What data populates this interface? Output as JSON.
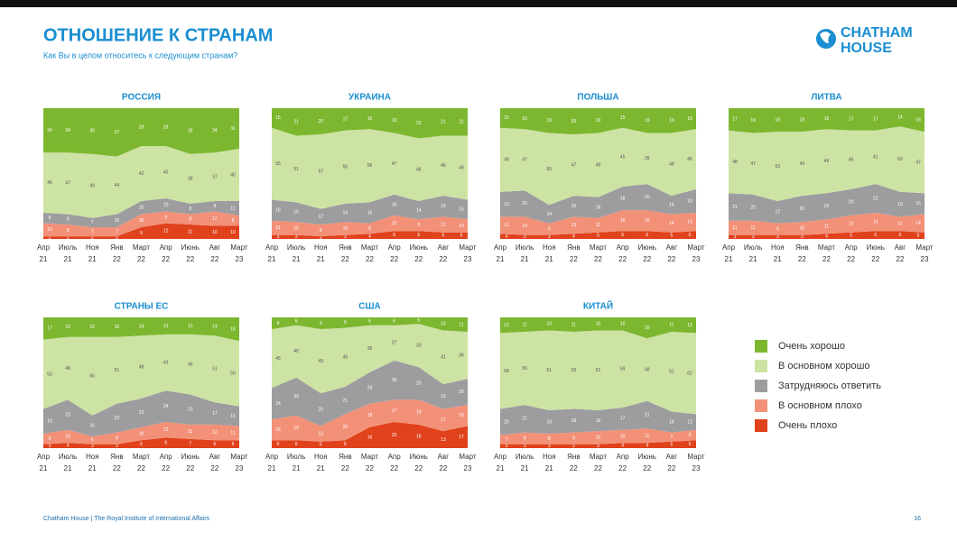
{
  "header": {
    "title": "ОТНОШЕНИЕ К СТРАНАМ",
    "subtitle": "Как Вы в целом относитесь к следующим странам?",
    "logo": [
      "CHATHAM",
      "HOUSE"
    ]
  },
  "footer": {
    "source": "Chatham House  |  The Royal Institute of International Affairs",
    "page": "16"
  },
  "chart_data": [
    {
      "type": "area",
      "title": "РОССИЯ",
      "ylim": [
        0,
        100
      ],
      "categories": [
        "Апр 21",
        "Июль 21",
        "Ноя 21",
        "Янв 22",
        "Март 22",
        "Апр 22",
        "Июнь 22",
        "Авг 22",
        "Март 23"
      ],
      "series": [
        {
          "name": "Очень плохо",
          "color": "#e0421c",
          "values": [
            2,
            2,
            2,
            2,
            9,
            12,
            11,
            10,
            10
          ]
        },
        {
          "name": "В основном плохо",
          "color": "#f29178",
          "values": [
            10,
            9,
            7,
            7,
            10,
            9,
            8,
            11,
            8
          ]
        },
        {
          "name": "Затрудняюсь ответить",
          "color": "#9d9d9f",
          "values": [
            8,
            8,
            7,
            10,
            10,
            10,
            8,
            8,
            11
          ]
        },
        {
          "name": "В основном хорошо",
          "color": "#cde3a4",
          "values": [
            46,
            47,
            49,
            44,
            42,
            40,
            38,
            37,
            40
          ]
        },
        {
          "name": "Очень хорошо",
          "color": "#7db72f",
          "values": [
            34,
            34,
            35,
            37,
            29,
            29,
            35,
            34,
            31
          ]
        }
      ]
    },
    {
      "type": "area",
      "title": "УКРАИНА",
      "ylim": [
        0,
        100
      ],
      "categories": [
        "Апр 21",
        "Июль 21",
        "Ноя 21",
        "Янв 22",
        "Март 22",
        "Апр 22",
        "Июнь 22",
        "Авг 22",
        "Март 23"
      ],
      "series": [
        {
          "name": "Очень плохо",
          "color": "#e0421c",
          "values": [
            3,
            3,
            2,
            3,
            4,
            6,
            6,
            5,
            5
          ]
        },
        {
          "name": "В основном плохо",
          "color": "#f29178",
          "values": [
            11,
            10,
            9,
            10,
            8,
            12,
            9,
            12,
            10
          ]
        },
        {
          "name": "Затрудняюсь ответить",
          "color": "#9d9d9f",
          "values": [
            16,
            15,
            12,
            14,
            16,
            16,
            14,
            16,
            15
          ]
        },
        {
          "name": "В основном хорошо",
          "color": "#cde3a4",
          "values": [
            55,
            51,
            57,
            56,
            56,
            47,
            48,
            46,
            49
          ]
        },
        {
          "name": "Очень хорошо",
          "color": "#7db72f",
          "values": [
            15,
            21,
            20,
            17,
            16,
            19,
            23,
            21,
            21
          ]
        }
      ]
    },
    {
      "type": "area",
      "title": "ПОЛЬША",
      "ylim": [
        0,
        100
      ],
      "categories": [
        "Апр 21",
        "Июль 21",
        "Ноя 21",
        "Янв 22",
        "Март 22",
        "Апр 22",
        "Июнь 22",
        "Авг 22",
        "Март 23"
      ],
      "series": [
        {
          "name": "Очень плохо",
          "color": "#e0421c",
          "values": [
            4,
            3,
            3,
            4,
            5,
            6,
            6,
            5,
            6
          ]
        },
        {
          "name": "В основном плохо",
          "color": "#f29178",
          "values": [
            13,
            14,
            9,
            13,
            11,
            16,
            16,
            14,
            14
          ]
        },
        {
          "name": "Затрудняюсь ответить",
          "color": "#9d9d9f",
          "values": [
            19,
            20,
            14,
            16,
            16,
            18,
            20,
            14,
            18
          ]
        },
        {
          "name": "В основном хорошо",
          "color": "#cde3a4",
          "values": [
            49,
            47,
            55,
            47,
            49,
            45,
            39,
            48,
            46
          ]
        },
        {
          "name": "Очень хорошо",
          "color": "#7db72f",
          "values": [
            15,
            16,
            19,
            20,
            19,
            15,
            19,
            19,
            16
          ]
        }
      ]
    },
    {
      "type": "area",
      "title": "ЛИТВА",
      "ylim": [
        0,
        100
      ],
      "categories": [
        "Апр 21",
        "Июль 21",
        "Ноя 21",
        "Янв 22",
        "Март 22",
        "Апр 22",
        "Июнь 22",
        "Авг 22",
        "Март 23"
      ],
      "series": [
        {
          "name": "Очень плохо",
          "color": "#e0421c",
          "values": [
            3,
            3,
            3,
            3,
            4,
            5,
            6,
            6,
            5
          ]
        },
        {
          "name": "В основном плохо",
          "color": "#f29178",
          "values": [
            11,
            11,
            9,
            10,
            11,
            13,
            14,
            11,
            14
          ]
        },
        {
          "name": "Затрудняюсь ответить",
          "color": "#9d9d9f",
          "values": [
            21,
            20,
            17,
            20,
            20,
            20,
            22,
            19,
            16
          ]
        },
        {
          "name": "В основном хорошо",
          "color": "#cde3a4",
          "values": [
            48,
            47,
            53,
            49,
            49,
            45,
            41,
            50,
            47
          ]
        },
        {
          "name": "Очень хорошо",
          "color": "#7db72f",
          "values": [
            17,
            19,
            18,
            18,
            16,
            17,
            17,
            14,
            18
          ]
        }
      ]
    },
    {
      "type": "area",
      "title": "СТРАНЫ ЕС",
      "ylim": [
        0,
        100
      ],
      "categories": [
        "Апр 21",
        "Июль 21",
        "Ноя 21",
        "Янв 22",
        "Март 22",
        "Апр 22",
        "Июнь 22",
        "Авг 22",
        "Март 23"
      ],
      "series": [
        {
          "name": "Очень плохо",
          "color": "#e0421c",
          "values": [
            3,
            4,
            3,
            3,
            6,
            8,
            7,
            6,
            6
          ]
        },
        {
          "name": "В основном плохо",
          "color": "#f29178",
          "values": [
            8,
            10,
            6,
            9,
            10,
            12,
            11,
            12,
            11
          ]
        },
        {
          "name": "Затрудняюсь ответить",
          "color": "#9d9d9f",
          "values": [
            19,
            23,
            16,
            22,
            22,
            24,
            23,
            17,
            15
          ]
        },
        {
          "name": "В основном хорошо",
          "color": "#cde3a4",
          "values": [
            53,
            48,
            60,
            51,
            48,
            43,
            46,
            51,
            50
          ]
        },
        {
          "name": "Очень хорошо",
          "color": "#7db72f",
          "values": [
            17,
            15,
            15,
            15,
            14,
            13,
            13,
            14,
            18
          ]
        }
      ]
    },
    {
      "type": "area",
      "title": "США",
      "ylim": [
        0,
        100
      ],
      "categories": [
        "Апр 21",
        "Июль 21",
        "Ноя 21",
        "Янв 22",
        "Март 22",
        "Апр 22",
        "Июнь 22",
        "Авг 22",
        "Март 23"
      ],
      "series": [
        {
          "name": "Очень плохо",
          "color": "#e0421c",
          "values": [
            6,
            6,
            5,
            6,
            16,
            20,
            18,
            13,
            17
          ]
        },
        {
          "name": "В основном плохо",
          "color": "#f29178",
          "values": [
            16,
            19,
            12,
            20,
            18,
            17,
            19,
            17,
            16
          ]
        },
        {
          "name": "Затрудняюсь ответить",
          "color": "#9d9d9f",
          "values": [
            24,
            29,
            25,
            21,
            24,
            30,
            25,
            19,
            20
          ]
        },
        {
          "name": "В основном хорошо",
          "color": "#cde3a4",
          "values": [
            45,
            40,
            49,
            45,
            36,
            27,
            33,
            41,
            36
          ]
        },
        {
          "name": "Очень хорошо",
          "color": "#7db72f",
          "values": [
            9,
            6,
            9,
            8,
            6,
            6,
            5,
            10,
            11
          ]
        }
      ]
    },
    {
      "type": "area",
      "title": "КИТАЙ",
      "ylim": [
        0,
        100
      ],
      "categories": [
        "Апр 21",
        "Июль 21",
        "Ноя 21",
        "Янв 22",
        "Март 22",
        "Апр 22",
        "Июнь 22",
        "Авг 22",
        "Март 23"
      ],
      "series": [
        {
          "name": "Очень плохо",
          "color": "#e0421c",
          "values": [
            3,
            3,
            3,
            3,
            3,
            4,
            4,
            5,
            6
          ]
        },
        {
          "name": "В основном плохо",
          "color": "#f29178",
          "values": [
            7,
            9,
            8,
            9,
            10,
            10,
            11,
            7,
            8
          ]
        },
        {
          "name": "Затрудняюсь ответить",
          "color": "#9d9d9f",
          "values": [
            20,
            21,
            18,
            18,
            16,
            17,
            21,
            16,
            12
          ]
        },
        {
          "name": "В основном хорошо",
          "color": "#cde3a4",
          "values": [
            58,
            56,
            61,
            59,
            61,
            59,
            48,
            61,
            62
          ]
        },
        {
          "name": "Очень хорошо",
          "color": "#7db72f",
          "values": [
            12,
            11,
            10,
            11,
            10,
            10,
            16,
            11,
            12
          ]
        }
      ]
    }
  ]
}
